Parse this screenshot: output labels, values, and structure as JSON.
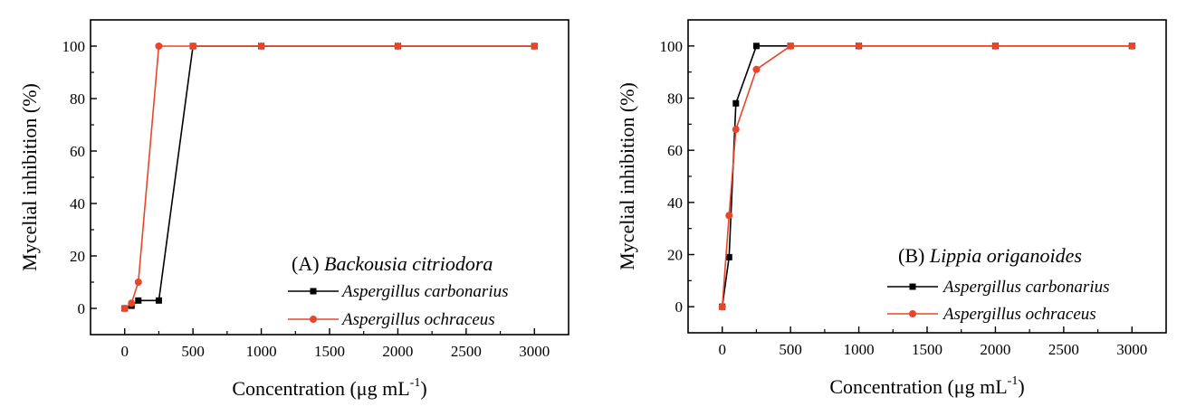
{
  "colors": {
    "series_black": "#000000",
    "series_red": "#e8462a"
  },
  "chart_data": [
    {
      "type": "line",
      "panel_label": "(A)",
      "panel_species": "Backousia citriodora",
      "xlabel": "Concentration (μg mL",
      "xlabel_sup": "-1",
      "xlabel_end": ")",
      "ylabel": "Mycelial inhibition (%)",
      "xlim": [
        -250,
        3250
      ],
      "ylim": [
        -10,
        110
      ],
      "xticks": [
        "0",
        "500",
        "1000",
        "1500",
        "2000",
        "2500",
        "3000"
      ],
      "xtick_values": [
        0,
        500,
        1000,
        1500,
        2000,
        2500,
        3000
      ],
      "yticks": [
        "0",
        "20",
        "40",
        "60",
        "80",
        "100"
      ],
      "ytick_values": [
        0,
        20,
        40,
        60,
        80,
        100
      ],
      "legend_position": "bottom-right",
      "series": [
        {
          "name": "Aspergillus carbonarius",
          "marker": "square",
          "color": "#000000",
          "x": [
            0,
            50,
            100,
            250,
            500,
            1000,
            2000,
            3000
          ],
          "y": [
            0,
            1,
            3,
            3,
            100,
            100,
            100,
            100
          ]
        },
        {
          "name": "Aspergillus ochraceus",
          "marker": "circle",
          "color": "#e8462a",
          "x": [
            0,
            50,
            100,
            250,
            500,
            1000,
            2000,
            3000
          ],
          "y": [
            0,
            2,
            10,
            100,
            100,
            100,
            100,
            100
          ]
        }
      ]
    },
    {
      "type": "line",
      "panel_label": "(B)",
      "panel_species": "Lippia origanoides",
      "xlabel": "Concentration (μg mL",
      "xlabel_sup": "-1",
      "xlabel_end": ")",
      "ylabel": "Mycelial inhibition (%)",
      "xlim": [
        -250,
        3250
      ],
      "ylim": [
        -10,
        110
      ],
      "xticks": [
        "0",
        "500",
        "1000",
        "1500",
        "2000",
        "2500",
        "3000"
      ],
      "xtick_values": [
        0,
        500,
        1000,
        1500,
        2000,
        2500,
        3000
      ],
      "yticks": [
        "0",
        "20",
        "40",
        "60",
        "80",
        "100"
      ],
      "ytick_values": [
        0,
        20,
        40,
        60,
        80,
        100
      ],
      "legend_position": "bottom-right",
      "series": [
        {
          "name": "Aspergillus carbonarius",
          "marker": "square",
          "color": "#000000",
          "x": [
            0,
            50,
            100,
            250,
            500,
            1000,
            2000,
            3000
          ],
          "y": [
            0,
            19,
            78,
            100,
            100,
            100,
            100,
            100
          ]
        },
        {
          "name": "Aspergillus ochraceus",
          "marker": "circle",
          "color": "#e8462a",
          "x": [
            0,
            50,
            100,
            250,
            500,
            1000,
            2000,
            3000
          ],
          "y": [
            0,
            35,
            68,
            91,
            100,
            100,
            100,
            100
          ]
        }
      ]
    }
  ]
}
